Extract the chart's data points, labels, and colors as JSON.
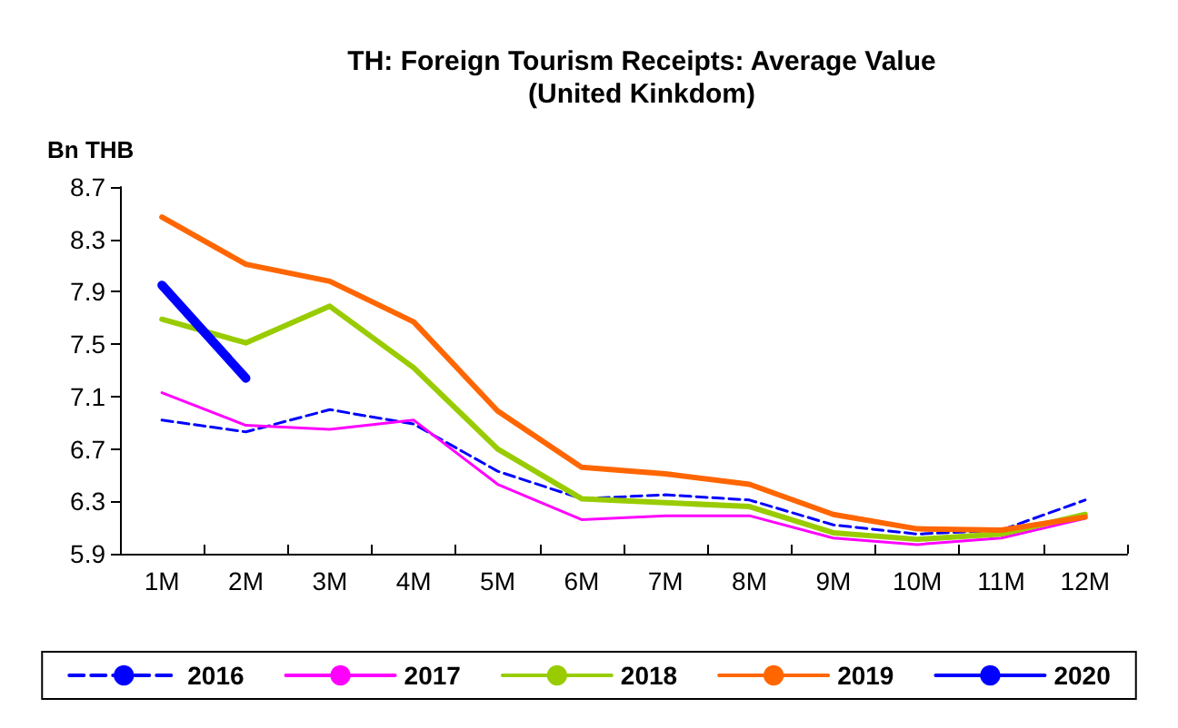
{
  "chart_data": {
    "type": "line",
    "title": "TH: Foreign Tourism Receipts: Average Value\n(United Kinkdom)",
    "ylabel": "Bn THB",
    "categories": [
      "1M",
      "2M",
      "3M",
      "4M",
      "5M",
      "6M",
      "7M",
      "8M",
      "9M",
      "10M",
      "11M",
      "12M"
    ],
    "series": [
      {
        "name": "2016",
        "color": "#0000ff",
        "line_style": "dashed",
        "values": [
          6.92,
          6.83,
          7.0,
          6.89,
          6.53,
          6.32,
          6.35,
          6.31,
          6.12,
          6.05,
          6.08,
          6.31
        ]
      },
      {
        "name": "2017",
        "color": "#ff00ff",
        "values": [
          7.13,
          6.88,
          6.85,
          6.92,
          6.43,
          6.16,
          6.19,
          6.19,
          6.02,
          5.97,
          6.02,
          6.17
        ]
      },
      {
        "name": "2018",
        "color": "#99cc00",
        "values": [
          7.69,
          7.51,
          7.79,
          7.32,
          6.7,
          6.32,
          6.29,
          6.26,
          6.06,
          6.01,
          6.05,
          6.2
        ]
      },
      {
        "name": "2019",
        "color": "#ff6600",
        "values": [
          8.47,
          8.11,
          7.98,
          7.67,
          6.99,
          6.56,
          6.51,
          6.43,
          6.2,
          6.09,
          6.08,
          6.18
        ]
      },
      {
        "name": "2020",
        "color": "#0000ff",
        "values": [
          7.95,
          7.24,
          null,
          null,
          null,
          null,
          null,
          null,
          null,
          null,
          null,
          null
        ]
      }
    ],
    "ylim": [
      5.9,
      8.7
    ],
    "yticks": [
      5.9,
      6.3,
      6.7,
      7.1,
      7.5,
      7.9,
      8.3,
      8.7
    ],
    "grid": false,
    "legend": "bottom",
    "marker": "none",
    "line_style": "solid"
  }
}
